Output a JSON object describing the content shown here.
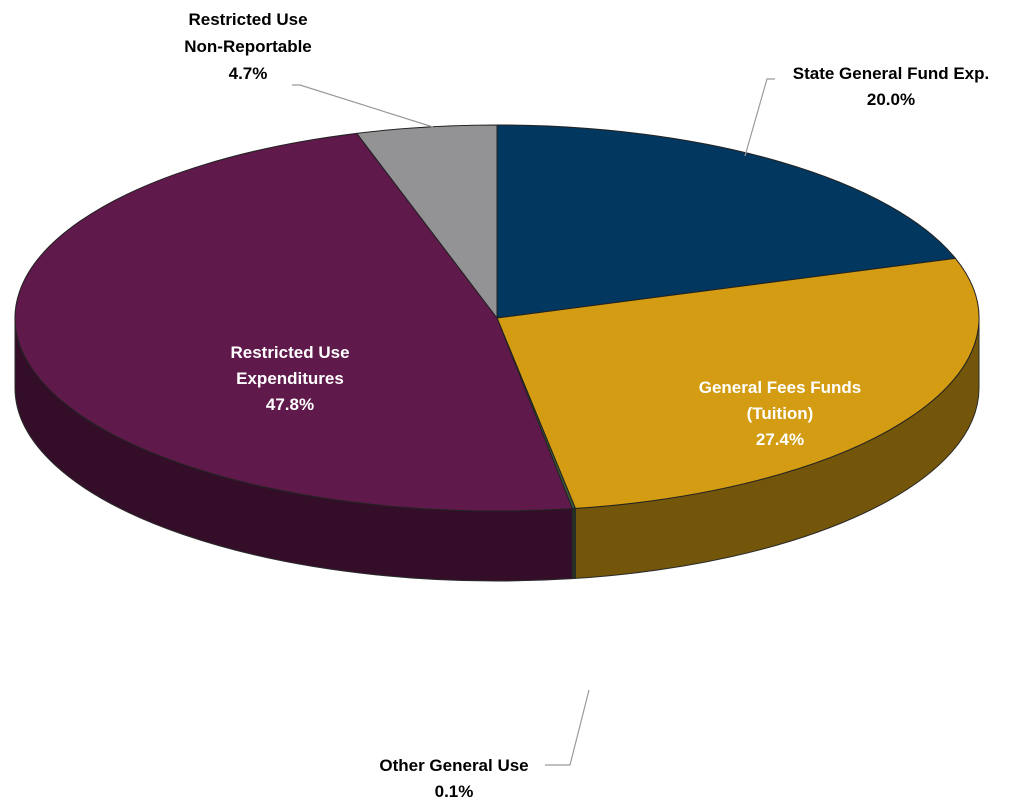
{
  "chart_data": {
    "type": "pie",
    "style": "3d",
    "title": "",
    "slices": [
      {
        "lines": [
          "State General Fund Exp."
        ],
        "pct_label": "20.0%",
        "value": 20.0,
        "color": "#02375F",
        "label_position": "outside"
      },
      {
        "lines": [
          "General Fees Funds",
          "(Tuition)"
        ],
        "pct_label": "27.4%",
        "value": 27.4,
        "color": "#D39C12",
        "label_position": "inside"
      },
      {
        "lines": [
          "Other General Use"
        ],
        "pct_label": "0.1%",
        "value": 0.1,
        "color": "#3D5A3A",
        "label_position": "outside"
      },
      {
        "lines": [
          "Restricted Use",
          "Expenditures"
        ],
        "pct_label": "47.8%",
        "value": 47.8,
        "color": "#5F194A",
        "label_position": "inside"
      },
      {
        "lines": [
          "Restricted Use",
          "Non-Reportable"
        ],
        "pct_label": "4.7%",
        "value": 4.7,
        "color": "#939396",
        "label_position": "outside"
      }
    ]
  }
}
